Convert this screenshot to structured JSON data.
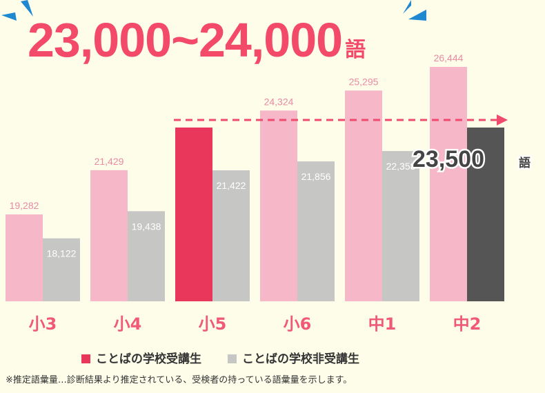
{
  "chart_data": {
    "type": "bar",
    "title": "23,000~24,000",
    "title_unit": "語",
    "categories": [
      "小3",
      "小4",
      "小5",
      "小6",
      "中1",
      "中2"
    ],
    "series": [
      {
        "name": "ことばの学校受講生",
        "values": [
          19282,
          21429,
          23500,
          24324,
          25295,
          26444
        ],
        "labels": [
          "19,282",
          "21,429",
          "",
          "24,324",
          "25,295",
          "26,444"
        ],
        "color": "#f6b7c8",
        "highlight_color": "#e8375b",
        "highlight_index": 2
      },
      {
        "name": "ことばの学校非受講生",
        "values": [
          18122,
          19438,
          21422,
          21856,
          22358,
          23500
        ],
        "labels": [
          "18,122",
          "19,438",
          "21,422",
          "21,856",
          "22,358",
          ""
        ],
        "color": "#c6c6c4",
        "highlight_color": "#555555",
        "highlight_index": 5
      }
    ],
    "callout": {
      "value": 23500,
      "label": "23,500",
      "unit": "語"
    },
    "ylim": [
      15065,
      27000
    ],
    "grid": false,
    "legend_placement": "bottom",
    "note": "※推定語彙量…診断結果より推定されている、受検者の持っている語彙量を示します。",
    "colors": {
      "title": "#f34a6a",
      "category_label": "#f05a78",
      "arrow": "#f04a6e",
      "accent_blue": "#1e88d0"
    }
  }
}
